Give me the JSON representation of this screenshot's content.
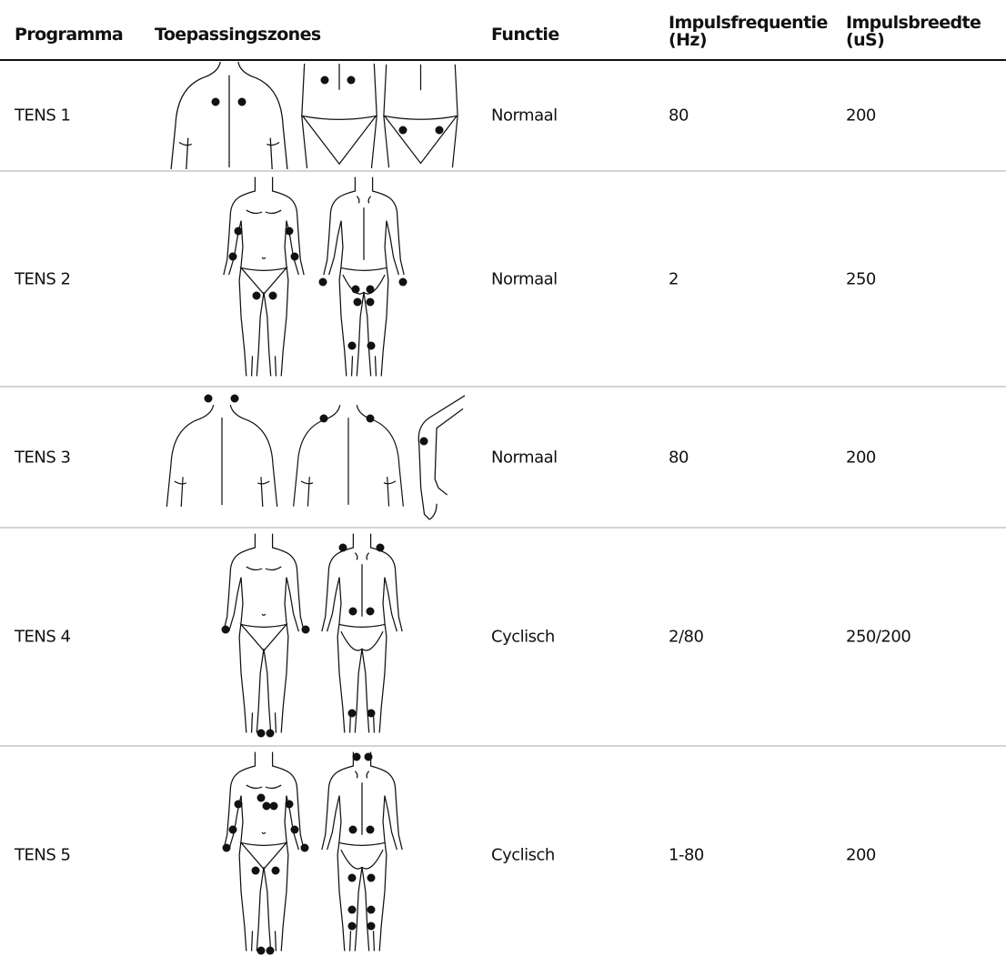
{
  "header": [
    {
      "lines": [
        "Programma"
      ]
    },
    {
      "lines": [
        "Toepassingszones"
      ]
    },
    {
      "lines": [
        "Functie"
      ]
    },
    {
      "lines": [
        "Impulsfrequentie",
        "(Hz)"
      ]
    },
    {
      "lines": [
        "Impulsbreedte",
        "(uS)"
      ]
    }
  ],
  "rows": [
    [
      "TENS 1",
      "Normaal",
      "80",
      "200"
    ],
    [
      "TENS 2",
      "Normaal",
      "2",
      "250"
    ],
    [
      "TENS 3",
      "Normaal",
      "80",
      "200"
    ],
    [
      "TENS 4",
      "Cyclisch",
      "2/80",
      "250/200"
    ],
    [
      "TENS 5",
      "Cyclisch",
      "1-80",
      "200"
    ]
  ]
}
